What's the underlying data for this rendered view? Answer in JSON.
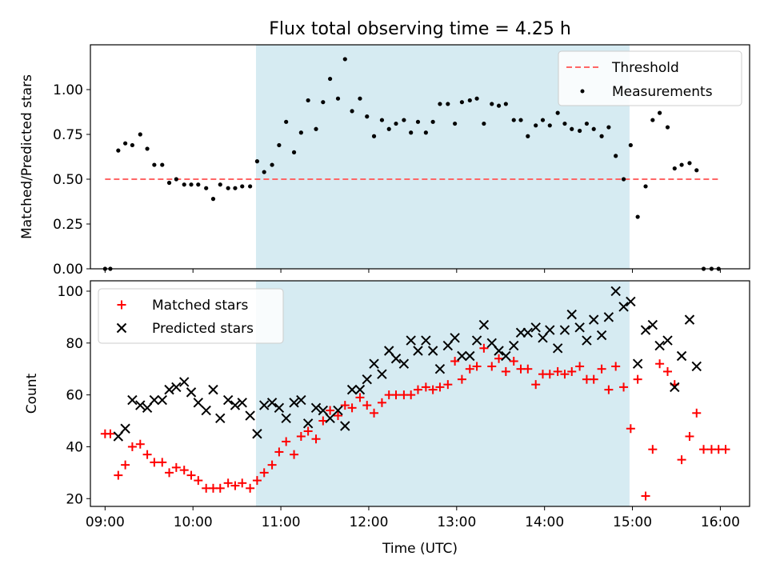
{
  "chart_data": [
    {
      "type": "scatter",
      "title": "Flux total observing time = 4.25 h",
      "ylabel": "Matched/Predicted stars",
      "xlabel": "",
      "xlim": [
        8.833,
        16.333
      ],
      "ylim": [
        0,
        1.25
      ],
      "yticks": [
        0.0,
        0.25,
        0.5,
        0.75,
        1.0
      ],
      "ytick_labels": [
        "0.00",
        "0.25",
        "0.50",
        "0.75",
        "1.00"
      ],
      "xticks": [
        9,
        10,
        11,
        12,
        13,
        14,
        15,
        16
      ],
      "shaded_interval": {
        "x": [
          10.717,
          14.967
        ],
        "color": "#add8e6"
      },
      "legend": {
        "position": "top-right",
        "entries": [
          "Threshold",
          "Measurements"
        ]
      },
      "threshold": {
        "name": "Threshold",
        "x": [
          9.0,
          16.0
        ],
        "y": 0.5,
        "color": "#ff6666",
        "style": "dashed"
      },
      "series": [
        {
          "name": "Measurements",
          "color": "#000000",
          "marker": "dot",
          "points": [
            [
              9.0,
              0.0
            ],
            [
              9.06,
              0.0
            ],
            [
              9.15,
              0.66
            ],
            [
              9.23,
              0.7
            ],
            [
              9.31,
              0.69
            ],
            [
              9.4,
              0.75
            ],
            [
              9.48,
              0.67
            ],
            [
              9.56,
              0.58
            ],
            [
              9.65,
              0.58
            ],
            [
              9.73,
              0.48
            ],
            [
              9.81,
              0.5
            ],
            [
              9.9,
              0.47
            ],
            [
              9.98,
              0.47
            ],
            [
              10.06,
              0.47
            ],
            [
              10.15,
              0.45
            ],
            [
              10.23,
              0.39
            ],
            [
              10.31,
              0.47
            ],
            [
              10.4,
              0.45
            ],
            [
              10.48,
              0.45
            ],
            [
              10.56,
              0.46
            ],
            [
              10.65,
              0.46
            ],
            [
              10.73,
              0.6
            ],
            [
              10.81,
              0.54
            ],
            [
              10.9,
              0.58
            ],
            [
              10.98,
              0.69
            ],
            [
              11.06,
              0.82
            ],
            [
              11.15,
              0.65
            ],
            [
              11.23,
              0.76
            ],
            [
              11.31,
              0.94
            ],
            [
              11.4,
              0.78
            ],
            [
              11.48,
              0.93
            ],
            [
              11.56,
              1.06
            ],
            [
              11.65,
              0.95
            ],
            [
              11.73,
              1.17
            ],
            [
              11.81,
              0.88
            ],
            [
              11.9,
              0.95
            ],
            [
              11.98,
              0.85
            ],
            [
              12.06,
              0.74
            ],
            [
              12.15,
              0.83
            ],
            [
              12.23,
              0.78
            ],
            [
              12.31,
              0.81
            ],
            [
              12.4,
              0.83
            ],
            [
              12.48,
              0.76
            ],
            [
              12.56,
              0.82
            ],
            [
              12.65,
              0.76
            ],
            [
              12.73,
              0.82
            ],
            [
              12.81,
              0.92
            ],
            [
              12.9,
              0.92
            ],
            [
              12.98,
              0.81
            ],
            [
              13.06,
              0.93
            ],
            [
              13.15,
              0.94
            ],
            [
              13.23,
              0.95
            ],
            [
              13.31,
              0.81
            ],
            [
              13.4,
              0.92
            ],
            [
              13.48,
              0.91
            ],
            [
              13.56,
              0.92
            ],
            [
              13.65,
              0.83
            ],
            [
              13.73,
              0.83
            ],
            [
              13.81,
              0.74
            ],
            [
              13.9,
              0.8
            ],
            [
              13.98,
              0.83
            ],
            [
              14.06,
              0.8
            ],
            [
              14.15,
              0.87
            ],
            [
              14.23,
              0.81
            ],
            [
              14.31,
              0.78
            ],
            [
              14.4,
              0.77
            ],
            [
              14.48,
              0.81
            ],
            [
              14.56,
              0.78
            ],
            [
              14.65,
              0.74
            ],
            [
              14.73,
              0.79
            ],
            [
              14.81,
              0.63
            ],
            [
              14.9,
              0.5
            ],
            [
              14.98,
              0.69
            ],
            [
              15.06,
              0.29
            ],
            [
              15.15,
              0.46
            ],
            [
              15.23,
              0.83
            ],
            [
              15.31,
              0.87
            ],
            [
              15.4,
              0.79
            ],
            [
              15.48,
              0.56
            ],
            [
              15.56,
              0.58
            ],
            [
              15.65,
              0.59
            ],
            [
              15.73,
              0.55
            ],
            [
              15.81,
              0.0
            ],
            [
              15.9,
              0.0
            ],
            [
              15.98,
              0.0
            ]
          ]
        }
      ]
    },
    {
      "type": "scatter",
      "title": "",
      "xlabel": "Time (UTC)",
      "ylabel": "Count",
      "xlim": [
        8.833,
        16.333
      ],
      "ylim": [
        17,
        104
      ],
      "yticks": [
        20,
        40,
        60,
        80,
        100
      ],
      "ytick_labels": [
        "20",
        "40",
        "60",
        "80",
        "100"
      ],
      "xticks": [
        9,
        10,
        11,
        12,
        13,
        14,
        15,
        16
      ],
      "xtick_labels": [
        "09:00",
        "10:00",
        "11:00",
        "12:00",
        "13:00",
        "14:00",
        "15:00",
        "16:00"
      ],
      "shaded_interval": {
        "x": [
          10.717,
          14.967
        ],
        "color": "#add8e6"
      },
      "legend": {
        "position": "top-left",
        "entries": [
          "Matched stars",
          "Predicted stars"
        ]
      },
      "series": [
        {
          "name": "Matched stars",
          "color": "#ff0000",
          "marker": "plus",
          "points": [
            [
              9.0,
              45
            ],
            [
              9.06,
              45
            ],
            [
              9.15,
              29
            ],
            [
              9.23,
              33
            ],
            [
              9.31,
              40
            ],
            [
              9.4,
              41
            ],
            [
              9.48,
              37
            ],
            [
              9.56,
              34
            ],
            [
              9.65,
              34
            ],
            [
              9.73,
              30
            ],
            [
              9.81,
              32
            ],
            [
              9.9,
              31
            ],
            [
              9.98,
              29
            ],
            [
              10.06,
              27
            ],
            [
              10.15,
              24
            ],
            [
              10.23,
              24
            ],
            [
              10.31,
              24
            ],
            [
              10.4,
              26
            ],
            [
              10.48,
              25
            ],
            [
              10.56,
              26
            ],
            [
              10.65,
              24
            ],
            [
              10.73,
              27
            ],
            [
              10.81,
              30
            ],
            [
              10.9,
              33
            ],
            [
              10.98,
              38
            ],
            [
              11.06,
              42
            ],
            [
              11.15,
              37
            ],
            [
              11.23,
              44
            ],
            [
              11.31,
              46
            ],
            [
              11.4,
              43
            ],
            [
              11.48,
              50
            ],
            [
              11.56,
              54
            ],
            [
              11.65,
              52
            ],
            [
              11.73,
              56
            ],
            [
              11.81,
              55
            ],
            [
              11.9,
              59
            ],
            [
              11.98,
              56
            ],
            [
              12.06,
              53
            ],
            [
              12.15,
              57
            ],
            [
              12.23,
              60
            ],
            [
              12.31,
              60
            ],
            [
              12.4,
              60
            ],
            [
              12.48,
              60
            ],
            [
              12.56,
              62
            ],
            [
              12.65,
              63
            ],
            [
              12.73,
              62
            ],
            [
              12.81,
              63
            ],
            [
              12.9,
              64
            ],
            [
              12.98,
              73
            ],
            [
              13.06,
              66
            ],
            [
              13.15,
              70
            ],
            [
              13.23,
              71
            ],
            [
              13.31,
              78
            ],
            [
              13.4,
              71
            ],
            [
              13.48,
              74
            ],
            [
              13.56,
              69
            ],
            [
              13.65,
              73
            ],
            [
              13.73,
              70
            ],
            [
              13.81,
              70
            ],
            [
              13.9,
              64
            ],
            [
              13.98,
              68
            ],
            [
              14.06,
              68
            ],
            [
              14.15,
              69
            ],
            [
              14.23,
              68
            ],
            [
              14.31,
              69
            ],
            [
              14.4,
              71
            ],
            [
              14.48,
              66
            ],
            [
              14.56,
              66
            ],
            [
              14.65,
              70
            ],
            [
              14.73,
              62
            ],
            [
              14.81,
              71
            ],
            [
              14.9,
              63
            ],
            [
              14.98,
              47
            ],
            [
              15.06,
              66
            ],
            [
              15.15,
              21
            ],
            [
              15.23,
              39
            ],
            [
              15.31,
              72
            ],
            [
              15.4,
              69
            ],
            [
              15.48,
              64
            ],
            [
              15.56,
              35
            ],
            [
              15.65,
              44
            ],
            [
              15.73,
              53
            ],
            [
              15.81,
              39
            ],
            [
              15.9,
              39
            ],
            [
              15.98,
              39
            ],
            [
              16.06,
              39
            ]
          ]
        },
        {
          "name": "Predicted stars",
          "color": "#000000",
          "marker": "x",
          "points": [
            [
              9.15,
              44
            ],
            [
              9.23,
              47
            ],
            [
              9.31,
              58
            ],
            [
              9.4,
              56
            ],
            [
              9.48,
              55
            ],
            [
              9.56,
              58
            ],
            [
              9.65,
              58
            ],
            [
              9.73,
              62
            ],
            [
              9.81,
              63
            ],
            [
              9.9,
              65
            ],
            [
              9.98,
              61
            ],
            [
              10.06,
              57
            ],
            [
              10.15,
              54
            ],
            [
              10.23,
              62
            ],
            [
              10.31,
              51
            ],
            [
              10.4,
              58
            ],
            [
              10.48,
              56
            ],
            [
              10.56,
              57
            ],
            [
              10.65,
              52
            ],
            [
              10.73,
              45
            ],
            [
              10.81,
              56
            ],
            [
              10.9,
              57
            ],
            [
              10.98,
              55
            ],
            [
              11.06,
              51
            ],
            [
              11.15,
              57
            ],
            [
              11.23,
              58
            ],
            [
              11.31,
              49
            ],
            [
              11.4,
              55
            ],
            [
              11.48,
              54
            ],
            [
              11.56,
              51
            ],
            [
              11.65,
              54
            ],
            [
              11.73,
              48
            ],
            [
              11.81,
              62
            ],
            [
              11.9,
              62
            ],
            [
              11.98,
              66
            ],
            [
              12.06,
              72
            ],
            [
              12.15,
              68
            ],
            [
              12.23,
              77
            ],
            [
              12.31,
              74
            ],
            [
              12.4,
              72
            ],
            [
              12.48,
              81
            ],
            [
              12.56,
              77
            ],
            [
              12.65,
              81
            ],
            [
              12.73,
              77
            ],
            [
              12.81,
              70
            ],
            [
              12.9,
              79
            ],
            [
              12.98,
              82
            ],
            [
              13.06,
              75
            ],
            [
              13.15,
              75
            ],
            [
              13.23,
              81
            ],
            [
              13.31,
              87
            ],
            [
              13.4,
              80
            ],
            [
              13.48,
              77
            ],
            [
              13.56,
              75
            ],
            [
              13.65,
              79
            ],
            [
              13.73,
              84
            ],
            [
              13.81,
              84
            ],
            [
              13.9,
              86
            ],
            [
              13.98,
              82
            ],
            [
              14.06,
              85
            ],
            [
              14.15,
              78
            ],
            [
              14.23,
              85
            ],
            [
              14.31,
              91
            ],
            [
              14.4,
              86
            ],
            [
              14.48,
              81
            ],
            [
              14.56,
              89
            ],
            [
              14.65,
              83
            ],
            [
              14.73,
              90
            ],
            [
              14.81,
              100
            ],
            [
              14.9,
              94
            ],
            [
              14.98,
              96
            ],
            [
              15.06,
              72
            ],
            [
              15.15,
              85
            ],
            [
              15.23,
              87
            ],
            [
              15.31,
              79
            ],
            [
              15.4,
              81
            ],
            [
              15.48,
              63
            ],
            [
              15.56,
              75
            ],
            [
              15.65,
              89
            ],
            [
              15.73,
              71
            ]
          ]
        }
      ]
    }
  ]
}
